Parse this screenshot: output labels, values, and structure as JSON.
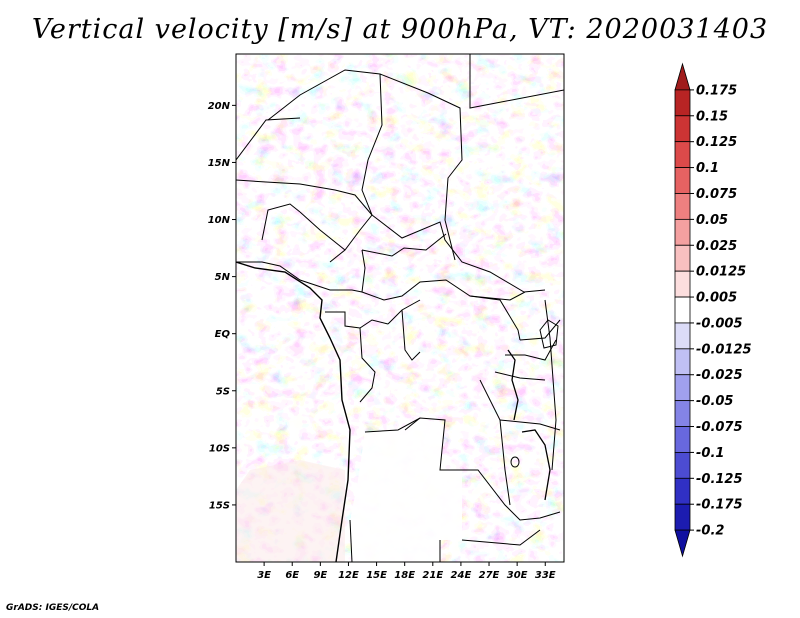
{
  "title": "Vertical velocity [m/s] at 900hPa, VT: 2020031403",
  "credit": "GrADS: IGES/COLA",
  "lat_labels": [
    "20N",
    "15N",
    "10N",
    "5N",
    "EQ",
    "5S",
    "10S",
    "15S"
  ],
  "lat_values": [
    20,
    15,
    10,
    5,
    0,
    -5,
    -10,
    -15
  ],
  "lon_labels": [
    "3E",
    "6E",
    "9E",
    "12E",
    "15E",
    "18E",
    "21E",
    "24E",
    "27E",
    "30E",
    "33E"
  ],
  "lon_values": [
    3,
    6,
    9,
    12,
    15,
    18,
    21,
    24,
    27,
    30,
    33
  ],
  "extent": {
    "lon_min": 0,
    "lon_max": 35,
    "lat_min": -20,
    "lat_max": 24.5
  },
  "colorbar": {
    "labels": [
      "0.175",
      "0.15",
      "0.125",
      "0.1",
      "0.075",
      "0.05",
      "0.025",
      "0.0125",
      "0.005",
      "-0.005",
      "-0.0125",
      "-0.025",
      "-0.05",
      "-0.075",
      "-0.1",
      "-0.125",
      "-0.175",
      "-0.2"
    ],
    "colors": [
      "#a01c1c",
      "#b82424",
      "#cc3434",
      "#dc4a4a",
      "#e66262",
      "#ee8080",
      "#f4a0a0",
      "#f8c0c0",
      "#fcdede",
      "#ffffff",
      "#dcdcf8",
      "#c0c0f4",
      "#a0a0ee",
      "#8484e6",
      "#6868de",
      "#4c4cd2",
      "#3030c4",
      "#1c1cb0",
      "#1010a0"
    ]
  }
}
